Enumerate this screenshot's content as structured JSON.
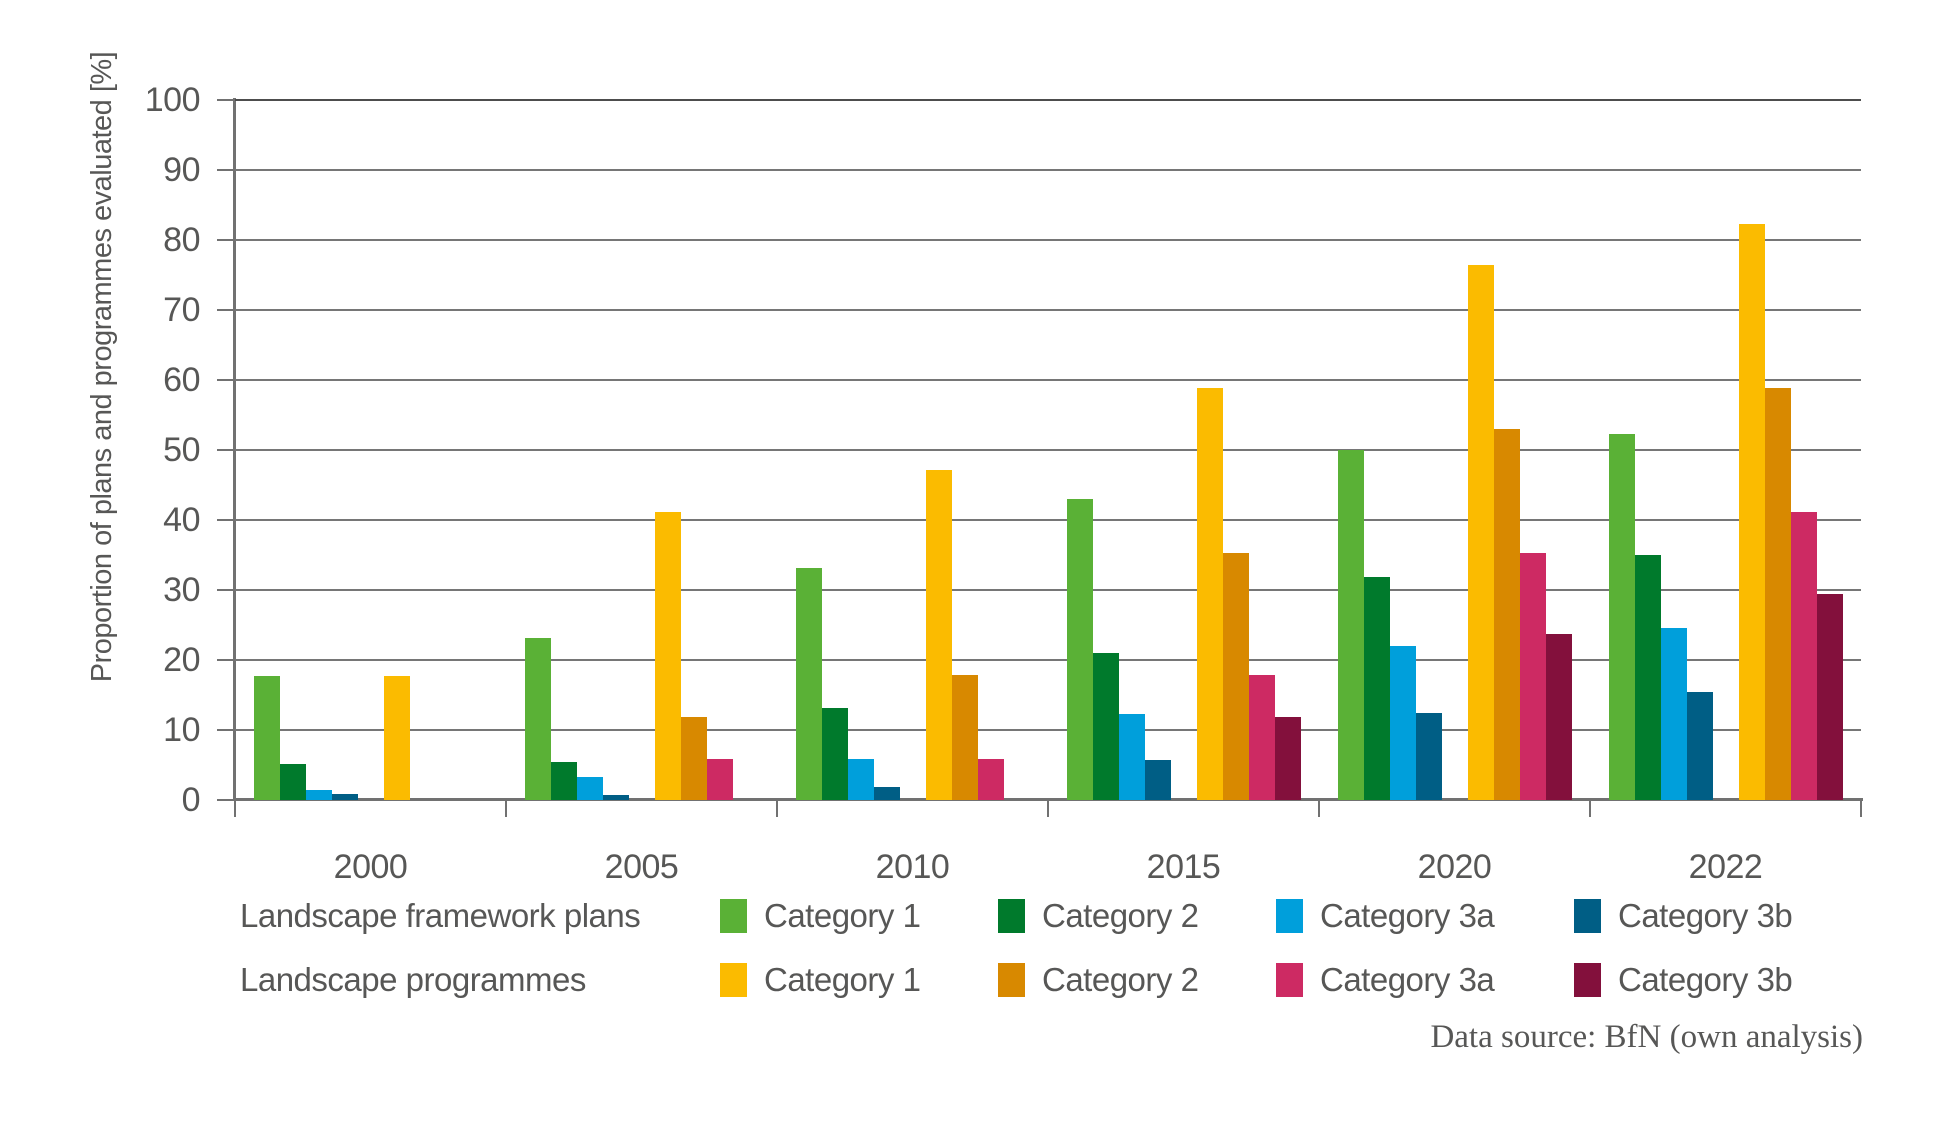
{
  "figure": {
    "y_axis_title": "Proportion of plans and programmes evaluated [%]",
    "source_note": "Data source: BfN (own analysis)"
  },
  "colors": {
    "text": "#575756",
    "grid": "#767676",
    "axis": "#717171"
  },
  "chart_data": {
    "type": "bar",
    "title": "",
    "xlabel": "",
    "ylabel": "Proportion of plans and programmes evaluated [%]",
    "categories": [
      "2000",
      "2005",
      "2010",
      "2015",
      "2020",
      "2022"
    ],
    "ylim": [
      0,
      100
    ],
    "yticks": [
      0,
      10,
      20,
      30,
      40,
      50,
      60,
      70,
      80,
      90,
      100
    ],
    "grid": true,
    "legend_position": "bottom",
    "source": "Data source: BfN (own analysis)",
    "series_groups": [
      {
        "label": "Landscape framework plans",
        "series": [
          {
            "name": "Category 1",
            "color": "#5AB136",
            "values": [
              17.7,
              23.2,
              33.2,
              43.0,
              50.0,
              52.3
            ]
          },
          {
            "name": "Category 2",
            "color": "#007A2C",
            "values": [
              5.1,
              5.4,
              13.2,
              21.0,
              31.9,
              35.0
            ]
          },
          {
            "name": "Category 3a",
            "color": "#009FDB",
            "values": [
              1.5,
              3.3,
              5.9,
              12.3,
              22.0,
              24.6
            ]
          },
          {
            "name": "Category 3b",
            "color": "#005E85",
            "values": [
              0.8,
              0.7,
              1.8,
              5.7,
              12.5,
              15.4
            ]
          }
        ]
      },
      {
        "label": "Landscape programmes",
        "series": [
          {
            "name": "Category 1",
            "color": "#FBBB00",
            "values": [
              17.7,
              41.2,
              47.2,
              58.9,
              76.5,
              82.3
            ]
          },
          {
            "name": "Category 2",
            "color": "#D88900",
            "values": [
              0,
              11.9,
              17.8,
              35.3,
              53.0,
              58.9
            ]
          },
          {
            "name": "Category 3a",
            "color": "#CD2A63",
            "values": [
              0,
              5.9,
              5.9,
              17.8,
              35.3,
              41.2
            ]
          },
          {
            "name": "Category 3b",
            "color": "#83103C",
            "values": [
              0,
              0,
              0,
              11.9,
              23.7,
              29.5
            ]
          }
        ]
      }
    ]
  }
}
